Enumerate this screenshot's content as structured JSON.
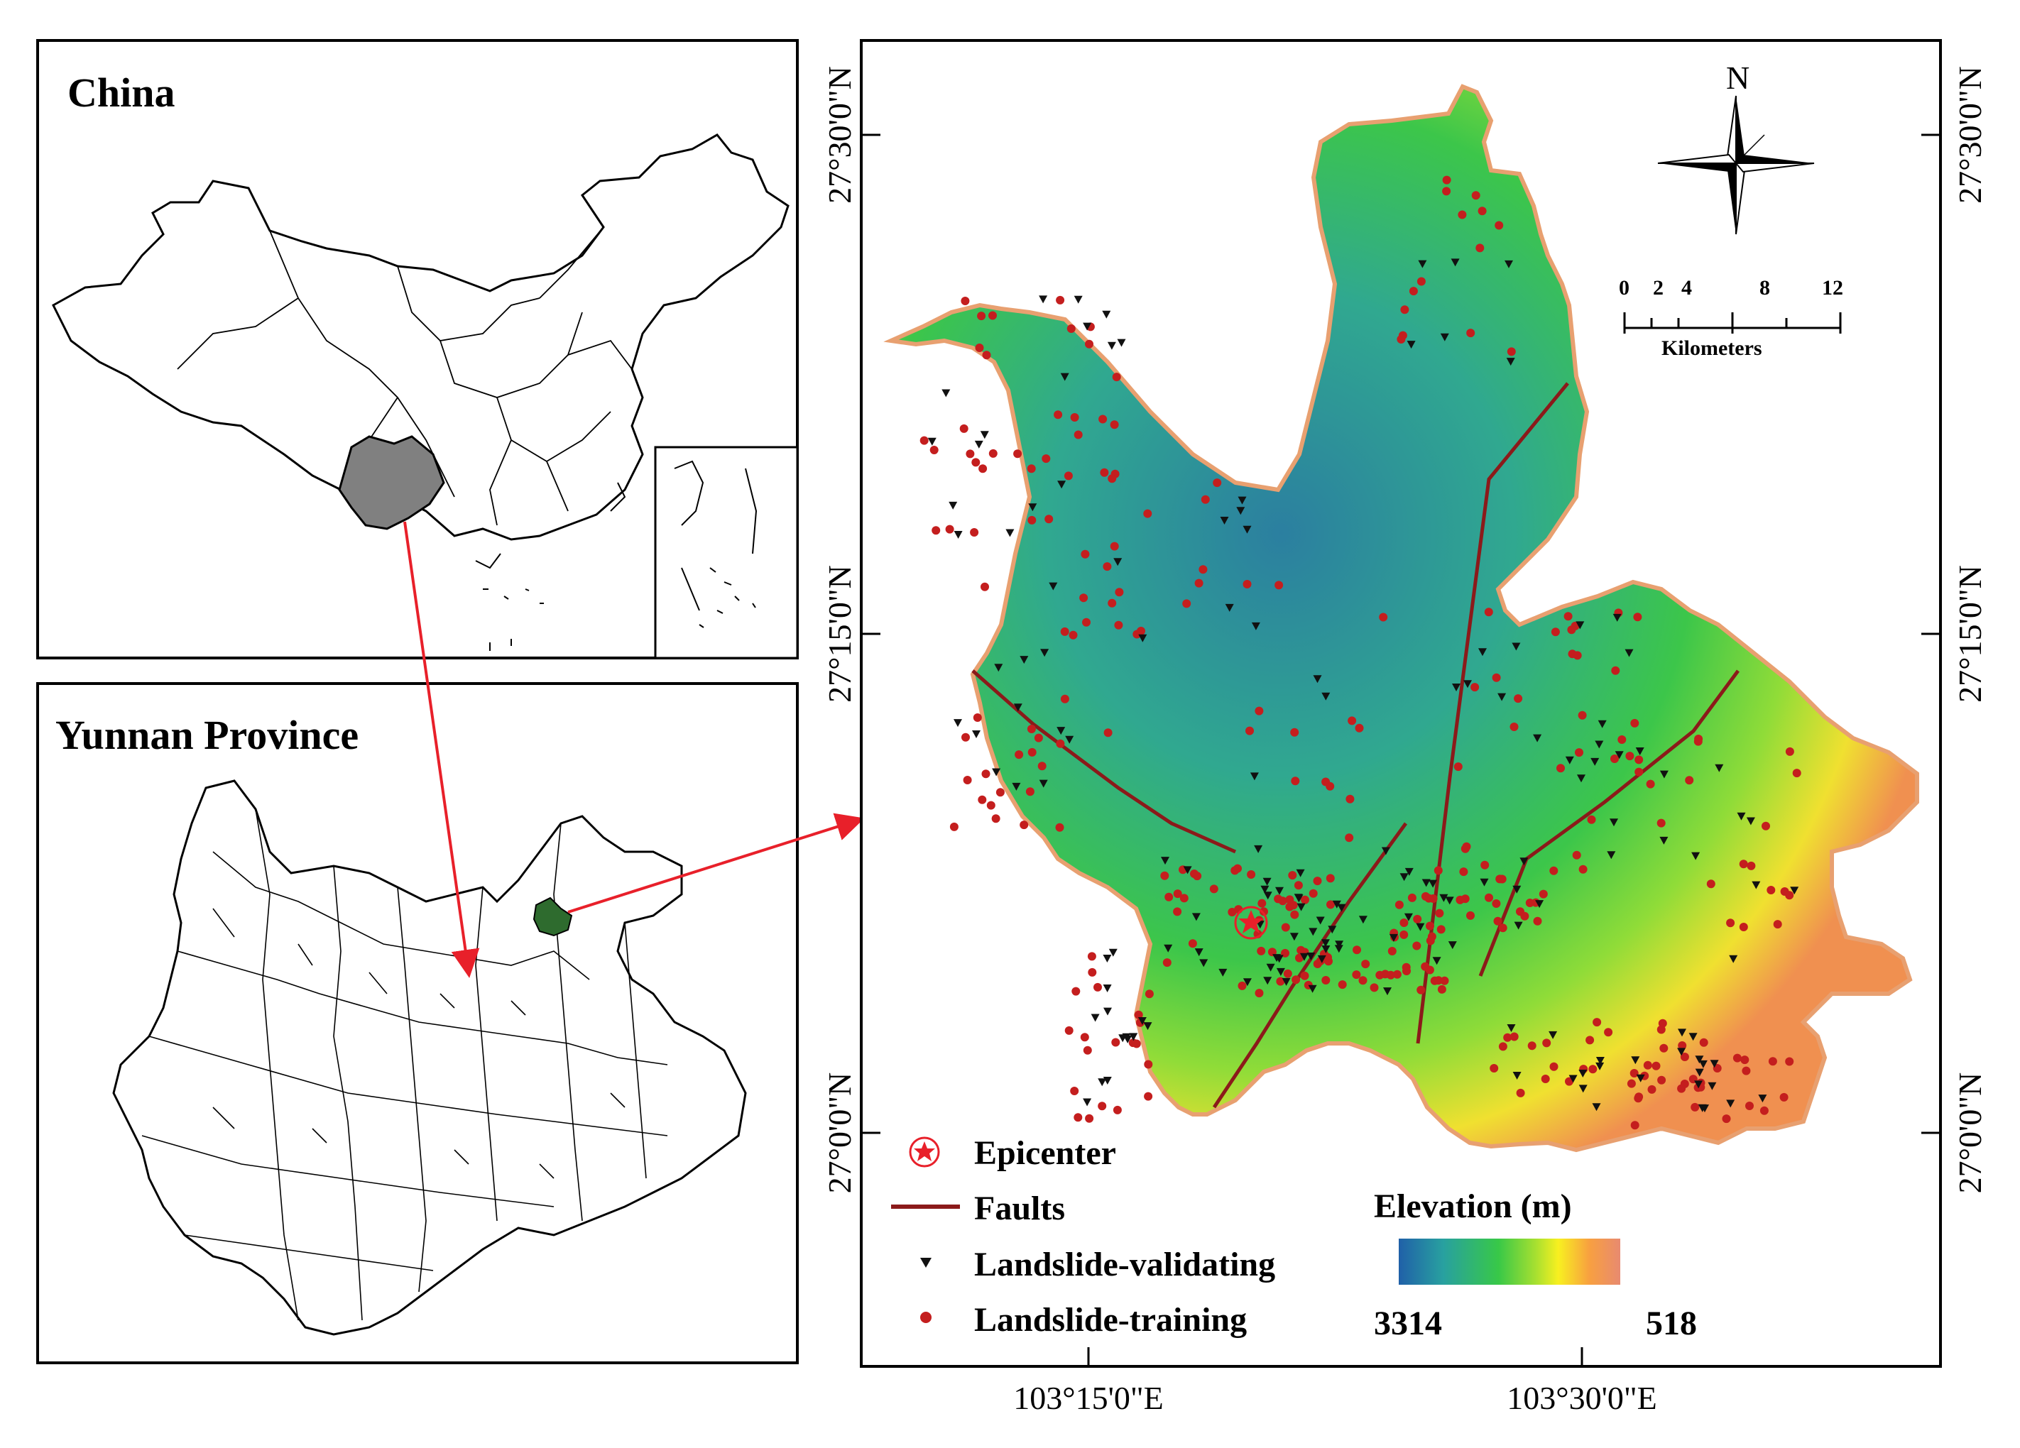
{
  "china_panel": {
    "title": "China"
  },
  "yunnan_panel": {
    "title": "Yunnan Province"
  },
  "main_map": {
    "lat_labels": [
      "27°30'0\"N",
      "27°15'0\"N",
      "27°0'0\"N"
    ],
    "lon_labels": [
      "103°15'0\"E",
      "103°30'0\"E"
    ],
    "north_arrow": {
      "label": "N",
      "icon": "north-arrow-icon"
    },
    "scale_bar": {
      "ticks": [
        "0",
        "2",
        "4",
        "8",
        "12"
      ],
      "unit": "Kilometers"
    }
  },
  "legend": {
    "epicenter": "Epicenter",
    "faults": "Faults",
    "validating": "Landslide-validating",
    "training": "Landslide-training",
    "elevation_title": "Elevation (m)",
    "elevation_max": "3314",
    "elevation_min": "518",
    "colors": {
      "fault": "#8b1a1a",
      "training": "#c41e1e",
      "validating": "#111111",
      "epicenter": "#e8202a",
      "highlight_yunnan": "#808080",
      "highlight_study_area": "#2e6b2e",
      "arrow": "#e8202a"
    },
    "elevation_ramp": [
      "#2060a8",
      "#28a0a0",
      "#38c848",
      "#a8e030",
      "#f8f020",
      "#f8a040",
      "#e88a70"
    ]
  }
}
